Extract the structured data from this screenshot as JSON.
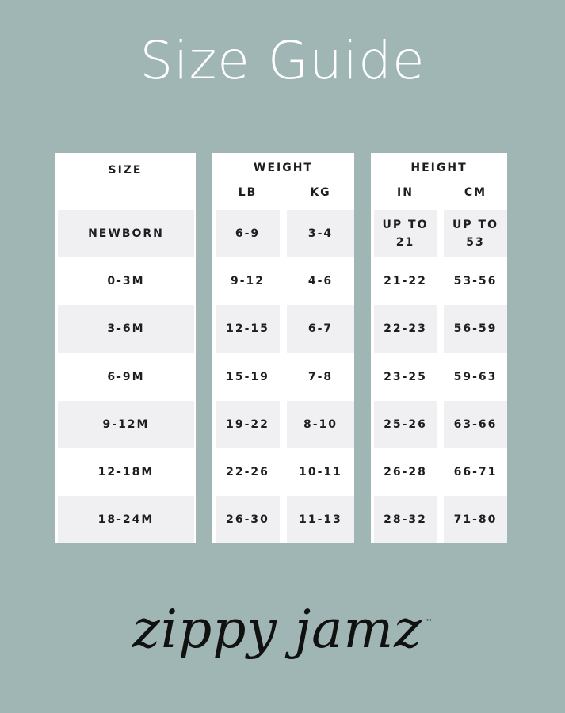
{
  "title": "Size Guide",
  "headers": {
    "size": "SIZE",
    "weight": "WEIGHT",
    "height": "HEIGHT",
    "lb": "LB",
    "kg": "KG",
    "in": "IN",
    "cm": "CM"
  },
  "rows": [
    {
      "size": "NEWBORN",
      "lb": "6-9",
      "kg": "3-4",
      "in": "UP TO 21",
      "cm": "UP TO 53"
    },
    {
      "size": "0-3M",
      "lb": "9-12",
      "kg": "4-6",
      "in": "21-22",
      "cm": "53-56"
    },
    {
      "size": "3-6M",
      "lb": "12-15",
      "kg": "6-7",
      "in": "22-23",
      "cm": "56-59"
    },
    {
      "size": "6-9M",
      "lb": "15-19",
      "kg": "7-8",
      "in": "23-25",
      "cm": "59-63"
    },
    {
      "size": "9-12M",
      "lb": "19-22",
      "kg": "8-10",
      "in": "25-26",
      "cm": "63-66"
    },
    {
      "size": "12-18M",
      "lb": "22-26",
      "kg": "10-11",
      "in": "26-28",
      "cm": "66-71"
    },
    {
      "size": "18-24M",
      "lb": "26-30",
      "kg": "11-13",
      "in": "28-32",
      "cm": "71-80"
    }
  ],
  "logo": {
    "text": "zippy jamz",
    "trademark": "™"
  },
  "colors": {
    "background": "#9fb6b5",
    "shade": "#f0f0f2"
  }
}
